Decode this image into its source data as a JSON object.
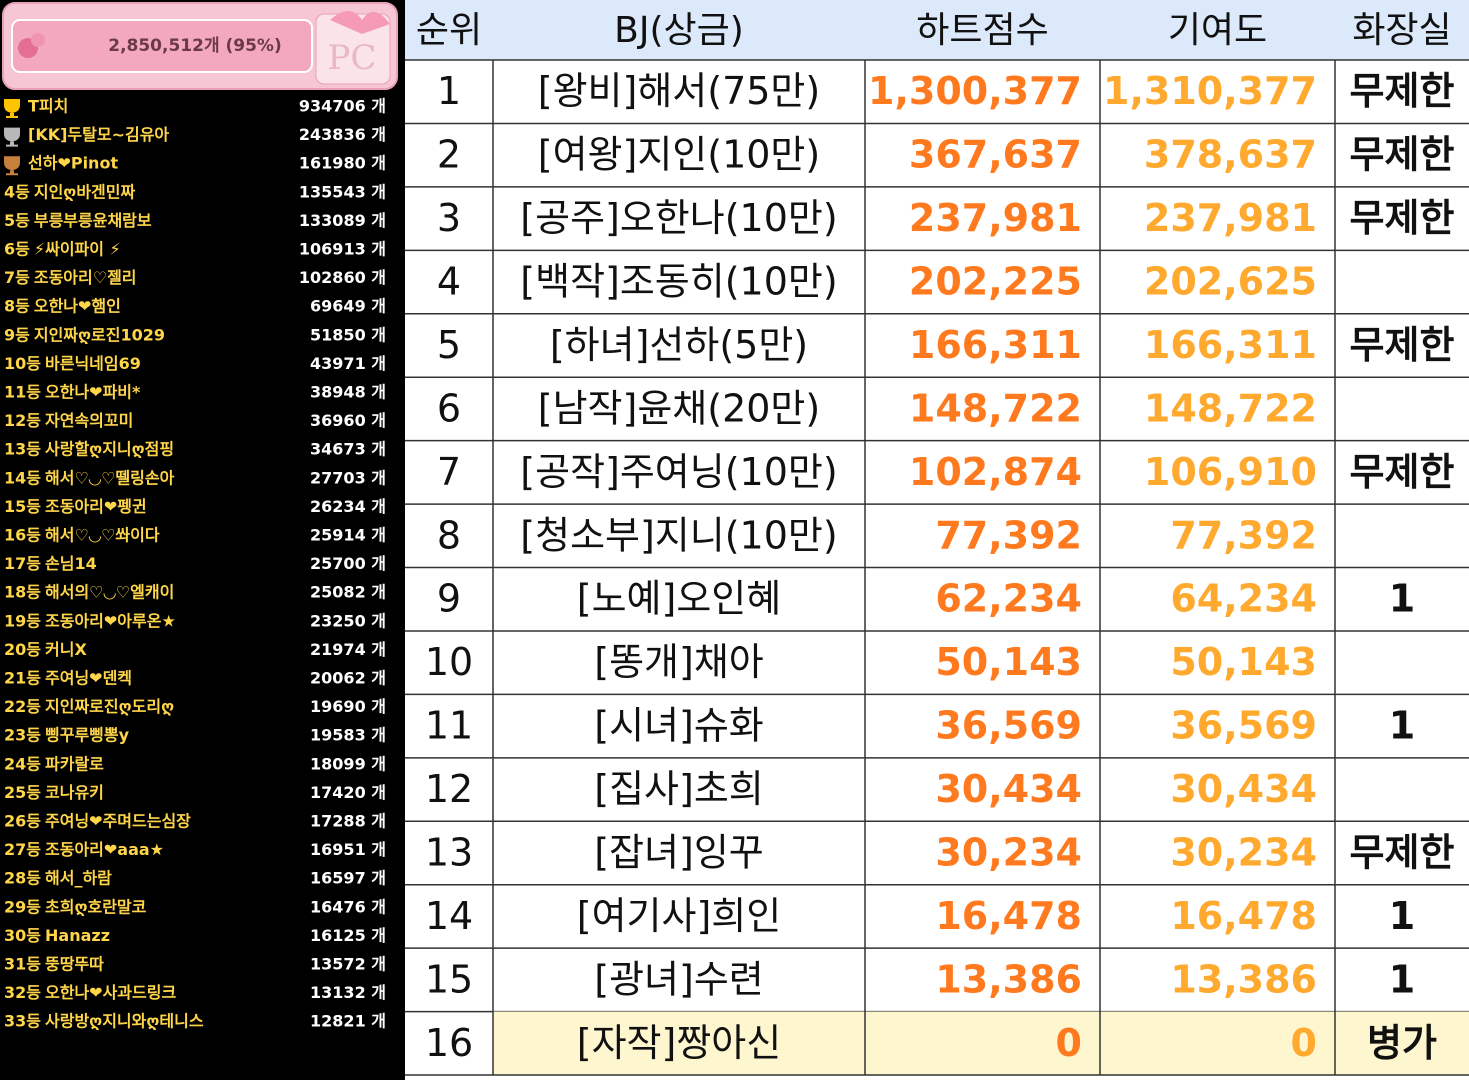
{
  "widget": {
    "progress": "2,850,512개 (95%)"
  },
  "leaderboard": [
    {
      "trophy": "#ffc400",
      "name": "T피치",
      "count": "934706 개"
    },
    {
      "trophy": "#b8b8b8",
      "name": "[KK]두탈모~김유아",
      "count": "243836 개"
    },
    {
      "trophy": "#c7813c",
      "name": "선하❤Pinot",
      "count": "161980 개"
    },
    {
      "rank": "4등",
      "name": "지인ღ바겐민짜",
      "count": "135543 개"
    },
    {
      "rank": "5등",
      "name": "부릉부릉윤채람보",
      "count": "133089 개"
    },
    {
      "rank": "6등",
      "name": "⚡싸이파이 ⚡",
      "count": "106913 개"
    },
    {
      "rank": "7등",
      "name": "조동아리♡젤리",
      "count": "102860 개"
    },
    {
      "rank": "8등",
      "name": "오한나❤햄인",
      "count": "69649 개"
    },
    {
      "rank": "9등",
      "name": "지인짜ღ로진1029",
      "count": "51850 개"
    },
    {
      "rank": "10등",
      "name": "바른닉네임69",
      "count": "43971 개"
    },
    {
      "rank": "11등",
      "name": "오한나❤파비*",
      "count": "38948 개"
    },
    {
      "rank": "12등",
      "name": "자연속의꼬미",
      "count": "36960 개"
    },
    {
      "rank": "13등",
      "name": "사랑할ღ지니ღ점핑",
      "count": "34673 개"
    },
    {
      "rank": "14등",
      "name": "해서♡◡♡뗄링손아",
      "count": "27703 개"
    },
    {
      "rank": "15등",
      "name": "조동아리❤펭귄",
      "count": "26234 개"
    },
    {
      "rank": "16등",
      "name": "해서♡◡♡쏴이다",
      "count": "25914 개"
    },
    {
      "rank": "17등",
      "name": "손님14",
      "count": "25700 개"
    },
    {
      "rank": "18등",
      "name": "해서의♡◡♡엘캐이",
      "count": "25082 개"
    },
    {
      "rank": "19등",
      "name": "조동아리❤아루온★",
      "count": "23250 개"
    },
    {
      "rank": "20등",
      "name": "커니X",
      "count": "21974 개"
    },
    {
      "rank": "21등",
      "name": "주여닝❤덴켁",
      "count": "20062 개"
    },
    {
      "rank": "22등",
      "name": "지인짜로진ღ도리ღ",
      "count": "19690 개"
    },
    {
      "rank": "23등",
      "name": "삥꾸루삥뽕y",
      "count": "19583 개"
    },
    {
      "rank": "24등",
      "name": "파카랄로",
      "count": "18099 개"
    },
    {
      "rank": "25등",
      "name": "코나유키",
      "count": "17420 개"
    },
    {
      "rank": "26등",
      "name": "주여닝❤주며드는심장",
      "count": "17288 개"
    },
    {
      "rank": "27등",
      "name": "조동아리❤aaa★",
      "count": "16951 개"
    },
    {
      "rank": "28등",
      "name": "해서_하람",
      "count": "16597 개"
    },
    {
      "rank": "29등",
      "name": "초희ღ호란말코",
      "count": "16476 개"
    },
    {
      "rank": "30등",
      "name": "Hanazz",
      "count": "16125 개"
    },
    {
      "rank": "31등",
      "name": "뚱땅뚜따",
      "count": "13572 개"
    },
    {
      "rank": "32등",
      "name": "오한나❤사과드링크",
      "count": "13132 개"
    },
    {
      "rank": "33등",
      "name": "사랑방ღ지니와ღ테니스",
      "count": "12821 개"
    }
  ],
  "table": {
    "headers": [
      "순위",
      "BJ(상금)",
      "하트점수",
      "기여도",
      "화장실"
    ],
    "rows": [
      [
        "1",
        "[왕비]해서(75만)",
        "1,300,377",
        "1,310,377",
        "무제한"
      ],
      [
        "2",
        "[여왕]지인(10만)",
        "367,637",
        "378,637",
        "무제한"
      ],
      [
        "3",
        "[공주]오한나(10만)",
        "237,981",
        "237,981",
        "무제한"
      ],
      [
        "4",
        "[백작]조동히(10만)",
        "202,225",
        "202,625",
        null
      ],
      [
        "5",
        "[하녀]선하(5만)",
        "166,311",
        "166,311",
        "무제한"
      ],
      [
        "6",
        "[남작]윤채(20만)",
        "148,722",
        "148,722",
        null
      ],
      [
        "7",
        "[공작]주여닝(10만)",
        "102,874",
        "106,910",
        "무제한"
      ],
      [
        "8",
        "[청소부]지니(10만)",
        "77,392",
        "77,392",
        null
      ],
      [
        "9",
        "[노예]오인혜",
        "62,234",
        "64,234",
        "1"
      ],
      [
        "10",
        "[똥개]채아",
        "50,143",
        "50,143",
        null
      ],
      [
        "11",
        "[시녀]슈화",
        "36,569",
        "36,569",
        "1"
      ],
      [
        "12",
        "[집사]초희",
        "30,434",
        "30,434",
        null
      ],
      [
        "13",
        "[잡녀]잉꾸",
        "30,234",
        "30,234",
        "무제한"
      ],
      [
        "14",
        "[여기사]희인",
        "16,478",
        "16,478",
        "1"
      ],
      [
        "15",
        "[광녀]수련",
        "13,386",
        "13,386",
        "1"
      ],
      [
        "16",
        "[자작]짱아신",
        "0",
        "0",
        "병가"
      ]
    ],
    "highlight_row": 15
  }
}
